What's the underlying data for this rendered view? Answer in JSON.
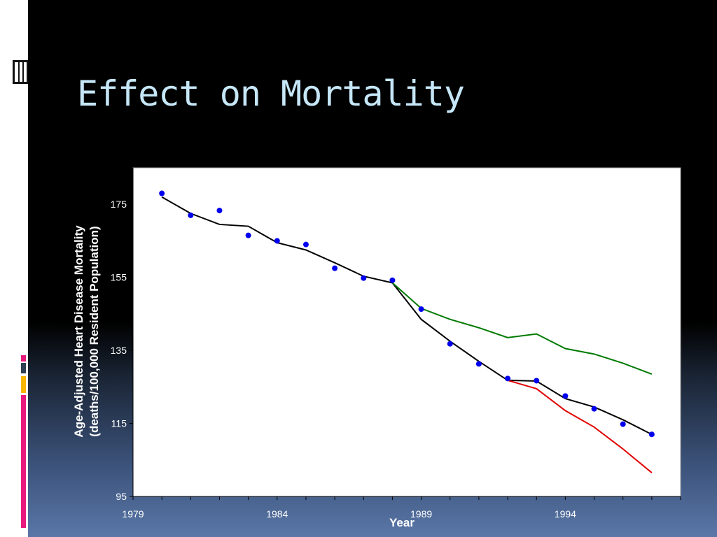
{
  "slide": {
    "title": "Effect on Mortality",
    "accent_colors": [
      "#e8197c",
      "#2f3f54",
      "#f7b500",
      "#e8197c"
    ]
  },
  "chart_data": {
    "type": "line",
    "xlabel": "Year",
    "ylabel_line1": "Age-Adjusted Heart Disease Mortality",
    "ylabel_line2": "(deaths/100,000 Resident Population)",
    "xlim": [
      1979,
      1998
    ],
    "ylim": [
      95,
      185
    ],
    "x_ticks": [
      1979,
      1984,
      1989,
      1994
    ],
    "y_ticks": [
      95,
      115,
      135,
      155,
      175
    ],
    "grid": false,
    "series": [
      {
        "kind": "markers",
        "color": "#0000ee",
        "x": [
          1980,
          1981,
          1982,
          1983,
          1984,
          1985,
          1986,
          1987,
          1988,
          1989,
          1990,
          1991,
          1992,
          1993,
          1994,
          1995,
          1996,
          1997
        ],
        "y": [
          178,
          172,
          173.3,
          166.5,
          165,
          164,
          157.5,
          154.8,
          154.2,
          146.3,
          136.8,
          131.3,
          127.3,
          126.7,
          122.5,
          119,
          114.8,
          112
        ]
      },
      {
        "kind": "line",
        "color": "#000000",
        "x": [
          1980,
          1981,
          1982,
          1983,
          1984,
          1985,
          1986,
          1987,
          1988,
          1989,
          1990,
          1991,
          1992,
          1993,
          1994,
          1995,
          1996,
          1997
        ],
        "y": [
          177,
          172.5,
          169.5,
          169,
          164.5,
          162.5,
          159,
          155.3,
          153.5,
          143.5,
          137.5,
          132,
          126.8,
          126.6,
          121.8,
          119.5,
          116,
          112
        ]
      },
      {
        "kind": "line",
        "color": "#007a00",
        "x": [
          1988,
          1989,
          1990,
          1991,
          1992,
          1993,
          1994,
          1995,
          1996,
          1997
        ],
        "y": [
          153.5,
          146.5,
          143.5,
          141.2,
          138.5,
          139.5,
          135.5,
          134,
          131.5,
          128.5
        ]
      },
      {
        "kind": "line",
        "color": "#e00000",
        "x": [
          1992,
          1993,
          1994,
          1995,
          1996,
          1997
        ],
        "y": [
          126.8,
          124.5,
          118.5,
          114,
          108,
          101.5
        ]
      }
    ]
  }
}
